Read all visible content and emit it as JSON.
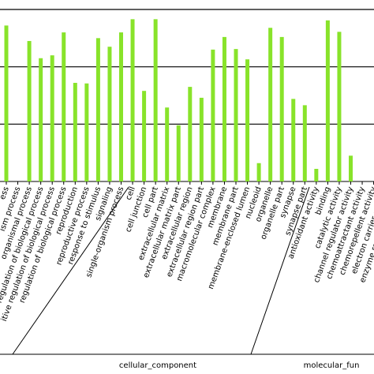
{
  "chart_data": {
    "type": "bar",
    "color": "#88e32a",
    "categories": [
      "ess",
      "ism process",
      "organismal process",
      "regulation of biological process",
      "itive regulation of biological process",
      "regulation of biological process",
      "reproduction",
      "reproductive process",
      "response to stimulus",
      "signaling",
      "single-organism process",
      "cell",
      "cell junction",
      "cell part",
      "extracellular matrix",
      "extracellular matrix part",
      "extracellular region",
      "extracellular region part",
      "macromolecular complex",
      "membrane",
      "membrane part",
      "membrane-enclosed lumen",
      "nucleoid",
      "organelle",
      "organelle part",
      "synapse",
      "synapse part",
      "antioxidant activity",
      "binding",
      "catalytic activity",
      "channel regulator activity",
      "chemoattractant activity",
      "chemorepellent activity",
      "electron carrier activity",
      "enzyme regulator activity"
    ],
    "values": [
      2.72,
      0,
      2.45,
      2.15,
      2.2,
      2.6,
      1.72,
      1.71,
      2.5,
      2.35,
      2.6,
      2.83,
      1.58,
      2.83,
      1.29,
      0.98,
      1.65,
      1.46,
      2.3,
      2.52,
      2.31,
      2.13,
      0.32,
      2.68,
      2.52,
      1.44,
      1.33,
      0.22,
      2.81,
      2.61,
      0.45,
      0,
      0,
      0,
      0
    ],
    "ylim": [
      0,
      3
    ],
    "grid_values": [
      1,
      2,
      3
    ],
    "grid": true,
    "groups": [
      "cellular_component",
      "molecular_fun"
    ]
  }
}
